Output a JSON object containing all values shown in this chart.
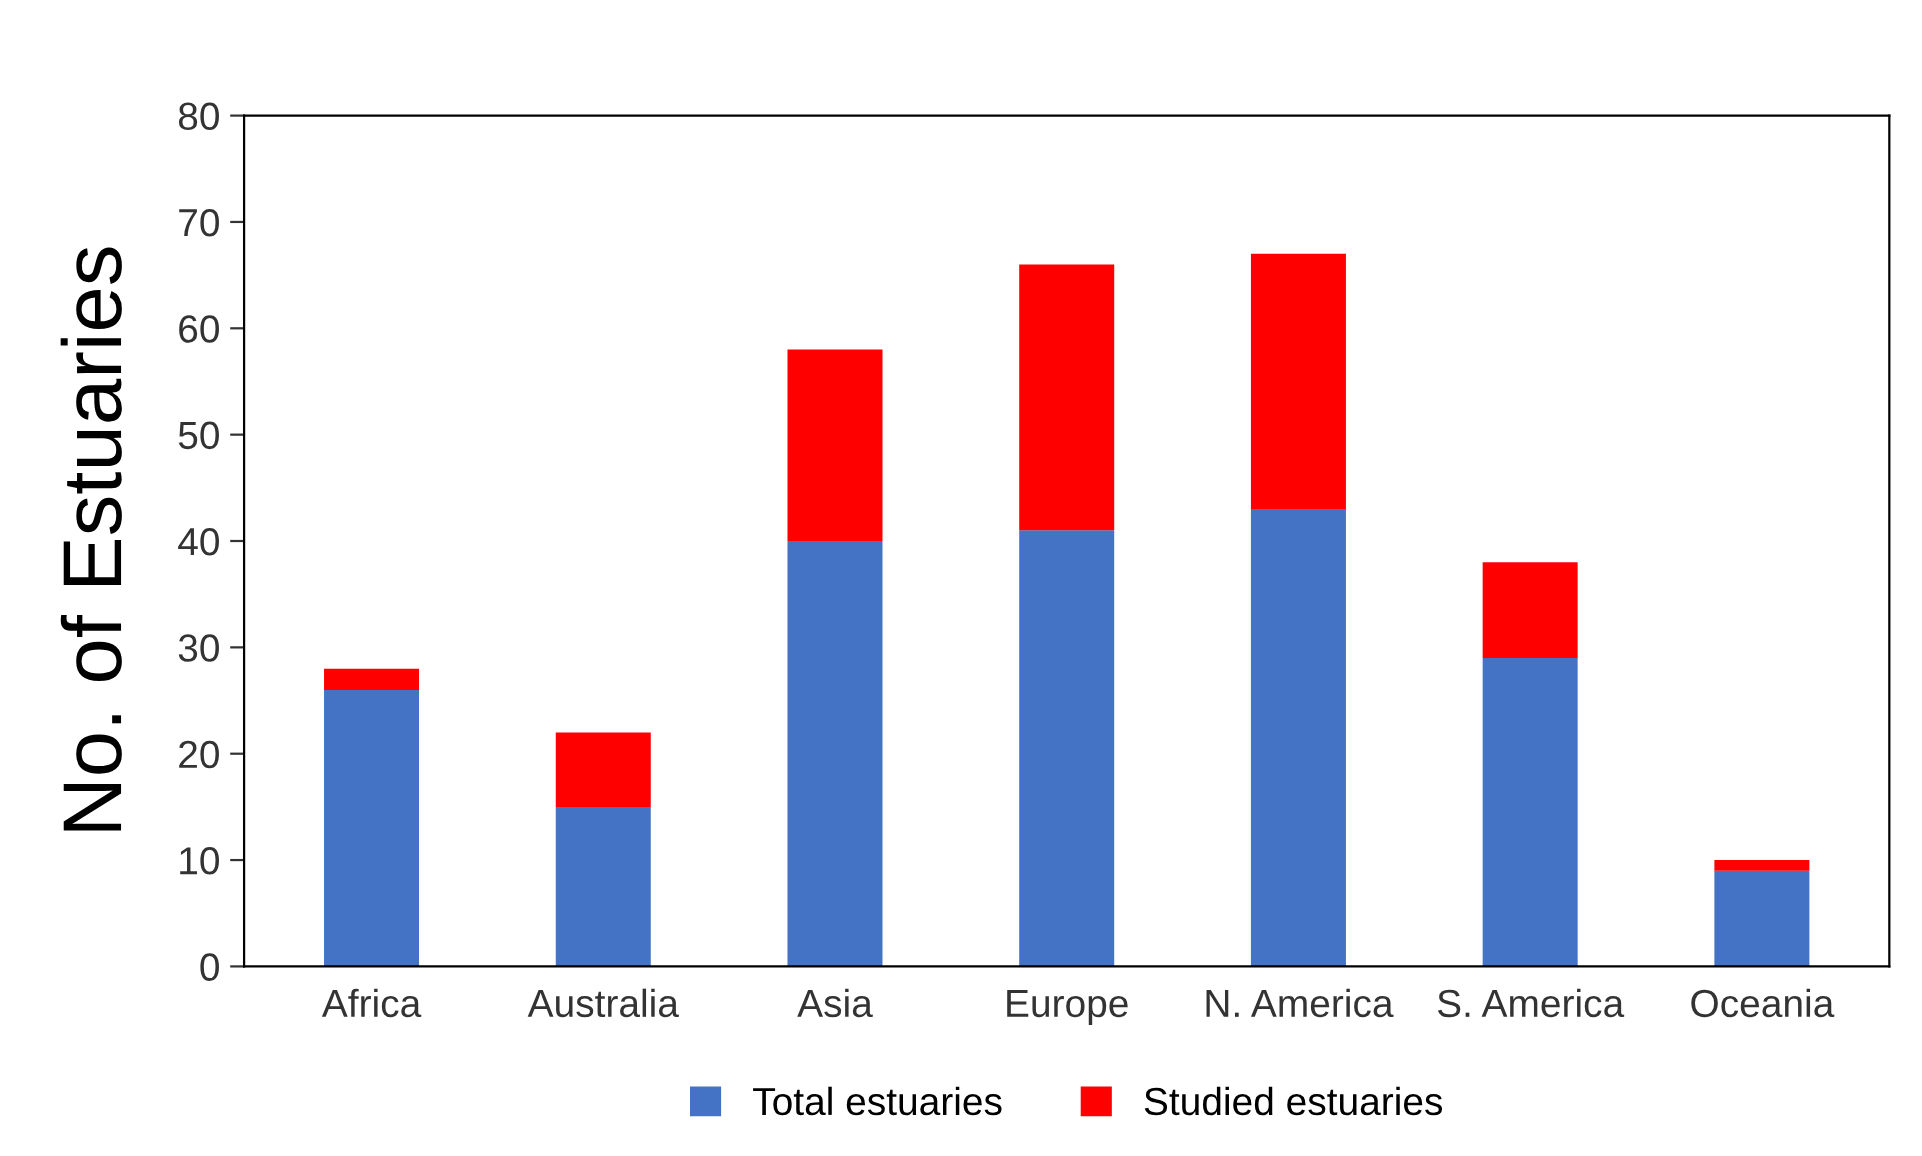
{
  "chart_data": {
    "type": "bar",
    "stacked": true,
    "ylabel": "No. of Estuaries",
    "categories": [
      "Africa",
      "Australia",
      "Asia",
      "Europe",
      "N. America",
      "S. America",
      "Oceania"
    ],
    "series": [
      {
        "name": "Total estuaries",
        "color": "#4472c4",
        "values": [
          26,
          15,
          40,
          41,
          43,
          29,
          9
        ]
      },
      {
        "name": "Studied estuaries",
        "color": "#ff0000",
        "values": [
          2,
          7,
          18,
          25,
          24,
          9,
          1
        ]
      }
    ],
    "ylim": [
      0,
      80
    ],
    "yticks": [
      0,
      10,
      20,
      30,
      40,
      50,
      60,
      70,
      80
    ],
    "grid": false,
    "legend": "bottom"
  }
}
